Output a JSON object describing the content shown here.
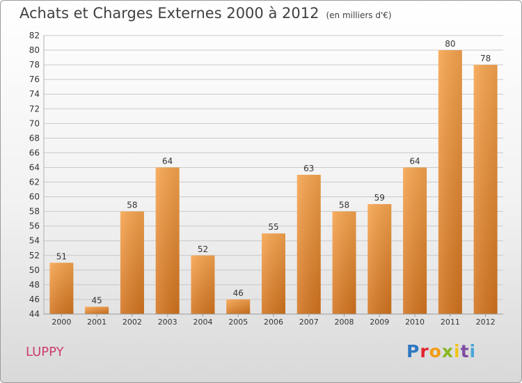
{
  "title": "Achats et Charges Externes 2000 à 2012",
  "unit_note": "(en milliers d'€)",
  "commune": "LUPPY",
  "logo_text": "Proxiti",
  "colors": {
    "bar_light": "#f6a44e",
    "bar_dark": "#d2731f",
    "grid": "#c8c8c8",
    "axis_text": "#333333",
    "commune": "#cc3e6c"
  },
  "chart_data": {
    "type": "bar",
    "categories": [
      "2000",
      "2001",
      "2002",
      "2003",
      "2004",
      "2005",
      "2006",
      "2007",
      "2008",
      "2009",
      "2010",
      "2011",
      "2012"
    ],
    "values": [
      51,
      45,
      58,
      64,
      52,
      46,
      55,
      63,
      58,
      59,
      64,
      80,
      78
    ],
    "ylim": [
      44,
      82
    ],
    "yticks": [
      44,
      46,
      48,
      50,
      52,
      54,
      56,
      58,
      60,
      62,
      64,
      66,
      68,
      70,
      72,
      74,
      76,
      78,
      80,
      82
    ],
    "grid": true,
    "data_labels": true
  }
}
